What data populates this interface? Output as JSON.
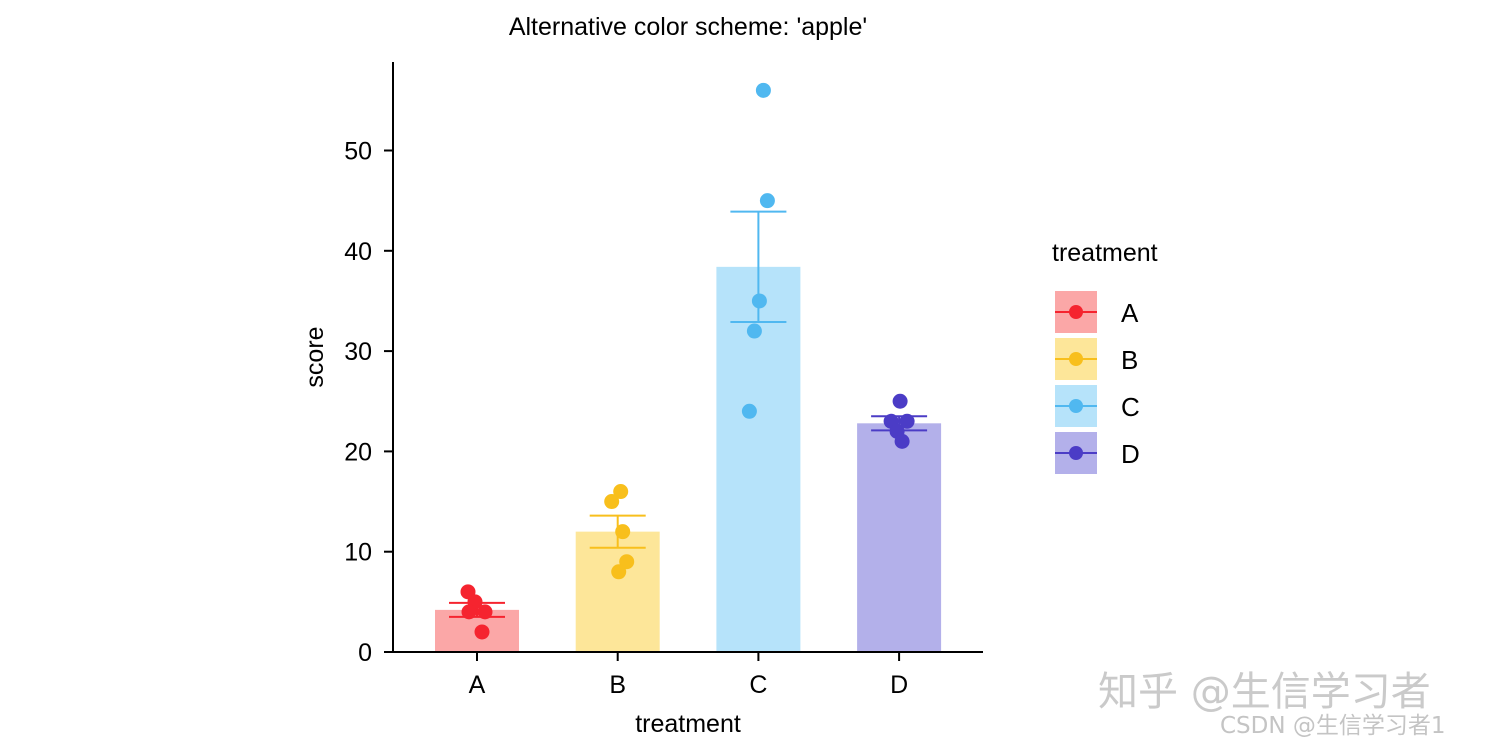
{
  "chart_data": {
    "type": "bar",
    "title": "Alternative color scheme: 'apple'",
    "xlabel": "treatment",
    "ylabel": "score",
    "ylim": [
      0,
      58.5
    ],
    "yticks": [
      0,
      10,
      20,
      30,
      40,
      50
    ],
    "categories": [
      "A",
      "B",
      "C",
      "D"
    ],
    "colors": [
      "#f5242f",
      "#f8bf1c",
      "#50b8f0",
      "#4b3cc6"
    ],
    "bar_fill_colors": [
      "#fba7a7",
      "#fde699",
      "#b6e3fa",
      "#b3b0ea"
    ],
    "series": [
      {
        "values": [
          4.2,
          12.0,
          38.4,
          22.8
        ],
        "error_low": [
          3.5,
          10.4,
          32.9,
          22.1
        ],
        "error_high": [
          4.9,
          13.6,
          43.9,
          23.5
        ],
        "points": [
          [
            6,
            5,
            4,
            4,
            2
          ],
          [
            16,
            15,
            12,
            9,
            8
          ],
          [
            56,
            45,
            35,
            32,
            24
          ],
          [
            25,
            23,
            23,
            22,
            21
          ]
        ]
      }
    ],
    "legend": {
      "title": "treatment",
      "position": "right",
      "entries": [
        "A",
        "B",
        "C",
        "D"
      ]
    },
    "grid": false
  },
  "watermark": {
    "main": "知乎 @生信学习者",
    "sub": "CSDN @生信学习者1"
  }
}
